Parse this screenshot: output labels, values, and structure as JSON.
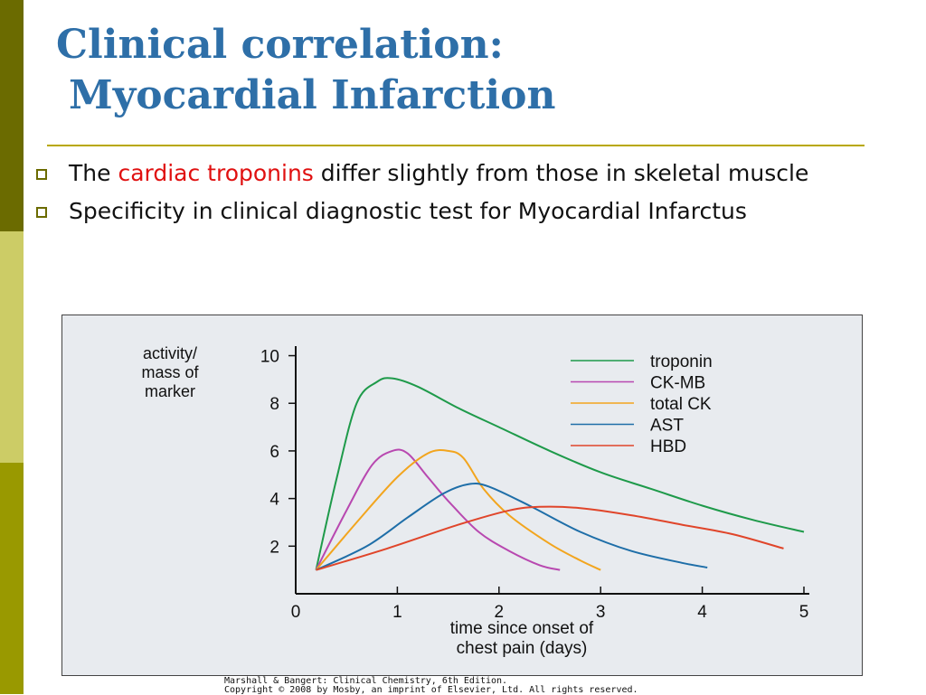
{
  "slide": {
    "title_line1": "Clinical correlation:",
    "title_line2": "Myocardial Infarction",
    "bullets": [
      {
        "pre": "The ",
        "highlight": "cardiac troponins",
        "post": " differ slightly from those in skeletal muscle"
      },
      {
        "text": "Specificity in clinical diagnostic test for Myocardial Infarctus"
      }
    ],
    "credit_line1": "Marshall & Bangert: Clinical Chemistry, 6th Edition.",
    "credit_line2": "Copyright © 2008 by Mosby, an imprint of Elsevier, Ltd. All rights reserved.",
    "colors": {
      "title": "#2e6fa8",
      "highlight": "#e01010",
      "rule": "#b8a800"
    }
  },
  "chart_data": {
    "type": "line",
    "title": "",
    "ylabel_lines": [
      "activity/",
      "mass of",
      "marker"
    ],
    "xlabel_lines": [
      "time since onset of",
      "chest pain (days)"
    ],
    "xlim": [
      0,
      5
    ],
    "ylim": [
      0,
      10.4
    ],
    "xticks": [
      0,
      1,
      2,
      3,
      4,
      5
    ],
    "yticks": [
      2,
      4,
      6,
      8,
      10
    ],
    "legend_position": "top-right",
    "series": [
      {
        "name": "troponin",
        "color": "#1e9a4a",
        "points": [
          [
            0.2,
            1
          ],
          [
            0.4,
            4.8
          ],
          [
            0.6,
            8.0
          ],
          [
            0.8,
            8.9
          ],
          [
            0.95,
            9.05
          ],
          [
            1.2,
            8.7
          ],
          [
            1.6,
            7.8
          ],
          [
            2.0,
            7.0
          ],
          [
            2.5,
            6.0
          ],
          [
            3.0,
            5.1
          ],
          [
            3.5,
            4.4
          ],
          [
            4.0,
            3.7
          ],
          [
            4.5,
            3.1
          ],
          [
            5.0,
            2.6
          ]
        ]
      },
      {
        "name": "CK-MB",
        "color": "#b848b0",
        "points": [
          [
            0.2,
            1
          ],
          [
            0.5,
            3.5
          ],
          [
            0.75,
            5.4
          ],
          [
            0.95,
            6.0
          ],
          [
            1.1,
            5.9
          ],
          [
            1.3,
            4.9
          ],
          [
            1.5,
            3.9
          ],
          [
            1.8,
            2.6
          ],
          [
            2.1,
            1.8
          ],
          [
            2.4,
            1.2
          ],
          [
            2.6,
            1.0
          ]
        ]
      },
      {
        "name": "total CK",
        "color": "#f2a51e",
        "points": [
          [
            0.2,
            1
          ],
          [
            0.6,
            3.0
          ],
          [
            1.0,
            4.9
          ],
          [
            1.3,
            5.9
          ],
          [
            1.5,
            6.0
          ],
          [
            1.65,
            5.7
          ],
          [
            1.85,
            4.4
          ],
          [
            2.1,
            3.3
          ],
          [
            2.5,
            2.1
          ],
          [
            2.8,
            1.4
          ],
          [
            3.0,
            1.0
          ]
        ]
      },
      {
        "name": "AST",
        "color": "#1e6ea8",
        "points": [
          [
            0.2,
            1
          ],
          [
            0.7,
            2.0
          ],
          [
            1.1,
            3.2
          ],
          [
            1.45,
            4.2
          ],
          [
            1.7,
            4.6
          ],
          [
            1.9,
            4.5
          ],
          [
            2.3,
            3.7
          ],
          [
            2.8,
            2.6
          ],
          [
            3.3,
            1.8
          ],
          [
            3.8,
            1.3
          ],
          [
            4.05,
            1.1
          ]
        ]
      },
      {
        "name": "HBD",
        "color": "#e0452a",
        "points": [
          [
            0.2,
            1
          ],
          [
            0.9,
            1.9
          ],
          [
            1.6,
            2.9
          ],
          [
            2.1,
            3.5
          ],
          [
            2.4,
            3.65
          ],
          [
            2.8,
            3.6
          ],
          [
            3.3,
            3.3
          ],
          [
            3.8,
            2.9
          ],
          [
            4.3,
            2.5
          ],
          [
            4.8,
            1.9
          ]
        ]
      }
    ]
  }
}
